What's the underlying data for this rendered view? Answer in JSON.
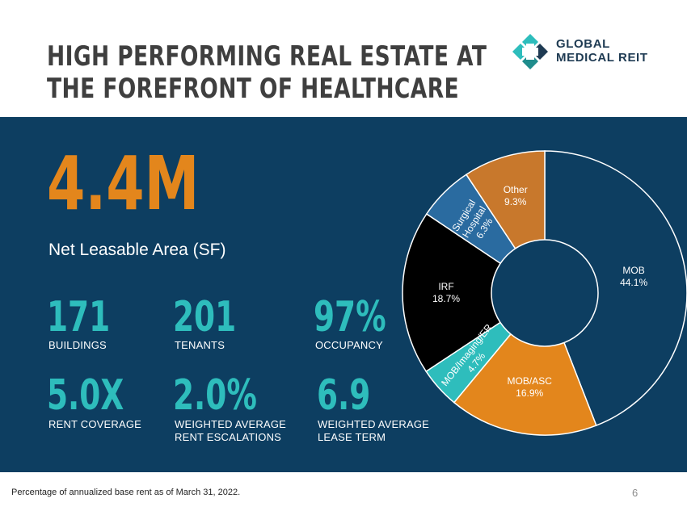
{
  "header": {
    "title_line1": "HIGH PERFORMING REAL ESTATE AT",
    "title_line2": "THE FOREFRONT OF HEALTHCARE"
  },
  "logo": {
    "line1": "GLOBAL",
    "line2": "MEDICAL REIT",
    "icon": "cross-logo-icon"
  },
  "headline": {
    "value": "4.4M",
    "label": "Net Leasable Area (SF)"
  },
  "stats": [
    {
      "value": "171",
      "label": "BUILDINGS"
    },
    {
      "value": "201",
      "label": "TENANTS"
    },
    {
      "value": "97%",
      "label": "OCCUPANCY"
    },
    {
      "value": "5.0X",
      "label": "RENT COVERAGE"
    },
    {
      "value": "2.0%",
      "label_line1": "WEIGHTED AVERAGE",
      "label_line2": "RENT ESCALATIONS"
    },
    {
      "value": "6.9",
      "label_line1": "WEIGHTED AVERAGE",
      "label_line2": "LEASE TERM"
    }
  ],
  "chart_data": {
    "type": "pie",
    "variant": "donut",
    "title": "",
    "categories": [
      "MOB",
      "MOB/ASC",
      "MOB/Imaging/ER",
      "IRF",
      "Surgical Hospital",
      "Other"
    ],
    "values": [
      44.1,
      16.9,
      4.7,
      18.7,
      6.3,
      9.3
    ],
    "labels": [
      {
        "name": "MOB",
        "pct": "44.1%"
      },
      {
        "name": "MOB/ASC",
        "pct": "16.9%"
      },
      {
        "name": "MOB/Imaging/ER",
        "pct": "4.7%"
      },
      {
        "name": "IRF",
        "pct": "18.7%"
      },
      {
        "name_line1": "Surgical",
        "name_line2": "Hospital",
        "pct": "6.3%"
      },
      {
        "name": "Other",
        "pct": "9.3%"
      }
    ],
    "colors": [
      "#0d3e61",
      "#e3861c",
      "#2ebdbc",
      "#000000",
      "#2a6ba0",
      "#c8782c"
    ],
    "start_angle": "top (12 o'clock), clockwise",
    "hole_color": "#0d3e61",
    "stroke_color": "#ffffff"
  },
  "footer": {
    "note": "Percentage of annualized base rent as of March 31, 2022.",
    "page": "6"
  },
  "colors": {
    "panel": "#0d3e61",
    "orange": "#e3861c",
    "teal": "#2ebdbc",
    "title": "#3f3f3f"
  }
}
